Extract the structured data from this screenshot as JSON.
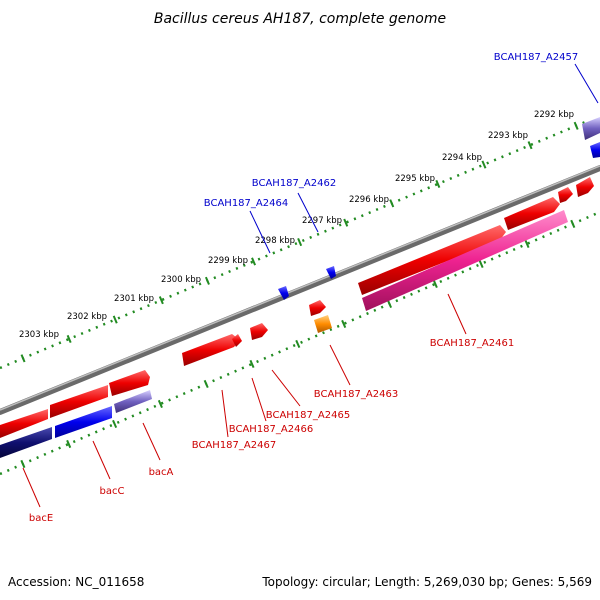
{
  "title": "Bacillus cereus AH187, complete genome",
  "footer": {
    "accession": "Accession: NC_011658",
    "summary": "Topology: circular; Length: 5,269,030 bp; Genes: 5,569"
  },
  "scale_ticks": [
    "2292 kbp",
    "2293 kbp",
    "2294 kbp",
    "2295 kbp",
    "2296 kbp",
    "2297 kbp",
    "2298 kbp",
    "2299 kbp",
    "2300 kbp",
    "2301 kbp",
    "2302 kbp",
    "2303 kbp"
  ],
  "gene_labels": {
    "a2457": "BCAH187_A2457",
    "a2462": "BCAH187_A2462",
    "a2464": "BCAH187_A2464",
    "a2461": "BCAH187_A2461",
    "a2463": "BCAH187_A2463",
    "a2465": "BCAH187_A2465",
    "a2466": "BCAH187_A2466",
    "a2467": "BCAH187_A2467",
    "bacA": "bacA",
    "bacC": "bacC",
    "bacE": "bacE"
  },
  "colors": {
    "forward_cds": "#ee0000",
    "reverse_cds": "#0000ee",
    "rna_pink": "#ee2290",
    "orange": "#ff8c00",
    "dark_navy": "#101070",
    "lavender": "#7060c0",
    "backbone": "#888888",
    "tick_green": "#228b22",
    "label_red": "#cc0000",
    "label_blue": "#0000cc"
  }
}
